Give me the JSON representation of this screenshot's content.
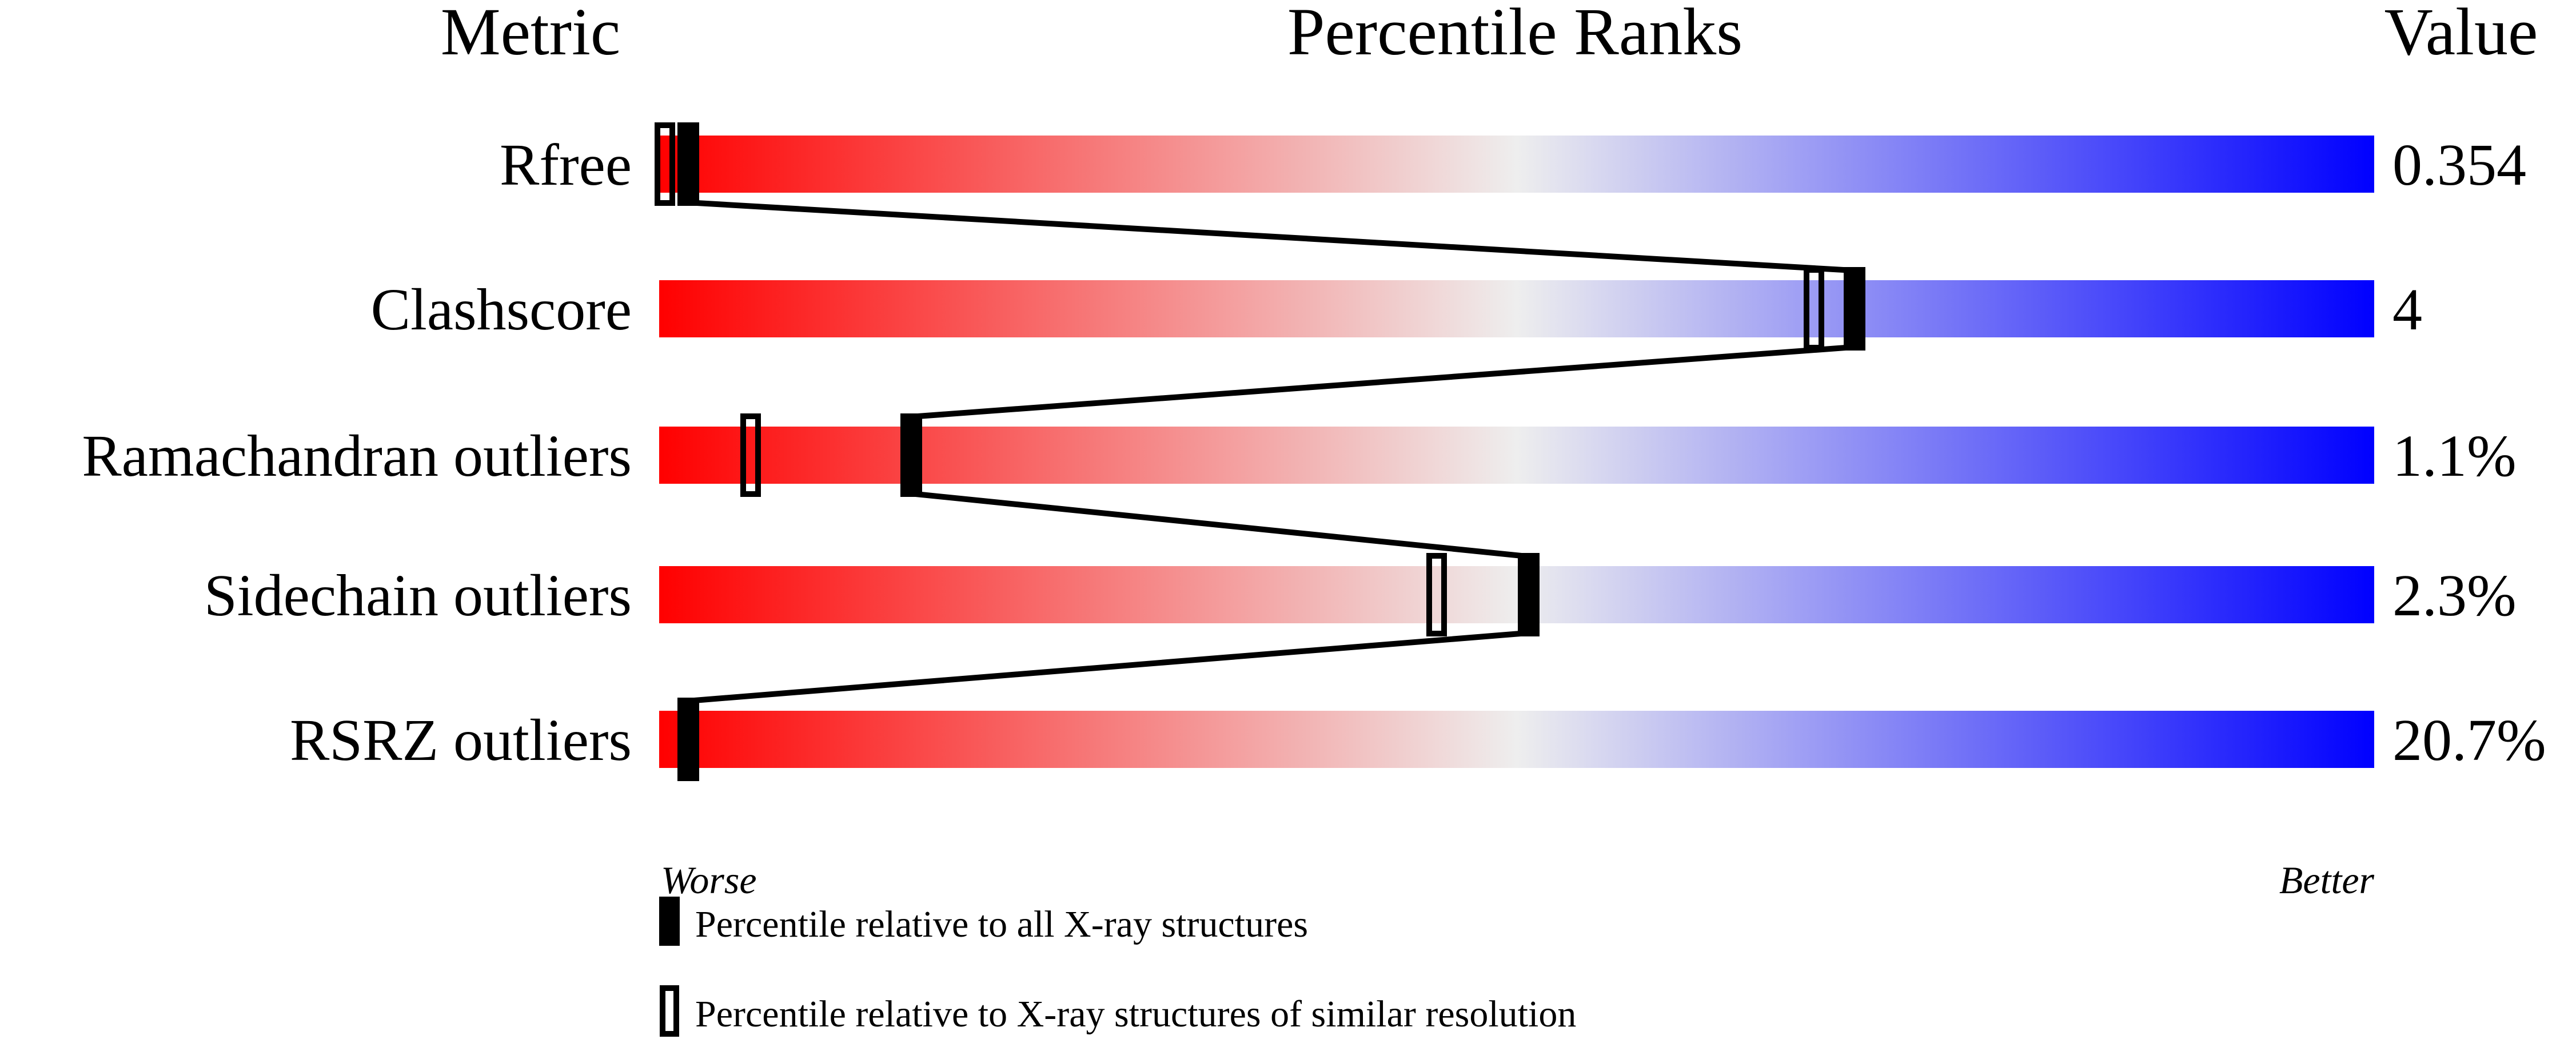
{
  "chart_data": {
    "type": "bar",
    "title": "Percentile Ranks",
    "header_metric": "Metric",
    "header_value": "Value",
    "xlim": [
      0,
      100
    ],
    "axis_left_label": "Worse",
    "axis_right_label": "Better",
    "gradient_colors": [
      "#ff0000",
      "#eeeeee",
      "#0000ff"
    ],
    "categories": [
      "Rfree",
      "Clashscore",
      "Ramachandran outliers",
      "Sidechain outliers",
      "RSRZ outliers"
    ],
    "values_text": [
      "0.354",
      "4",
      "1.1%",
      "2.3%",
      "20.7%"
    ],
    "series": [
      {
        "name": "Percentile relative to all X-ray structures",
        "marker": "filled",
        "values": [
          1,
          69,
          14,
          50,
          1
        ]
      },
      {
        "name": "Percentile relative to X-ray structures of similar resolution",
        "marker": "open",
        "values": [
          0,
          67,
          5,
          45,
          null
        ]
      }
    ],
    "grid": false,
    "legend_placement": "bottom-left"
  }
}
